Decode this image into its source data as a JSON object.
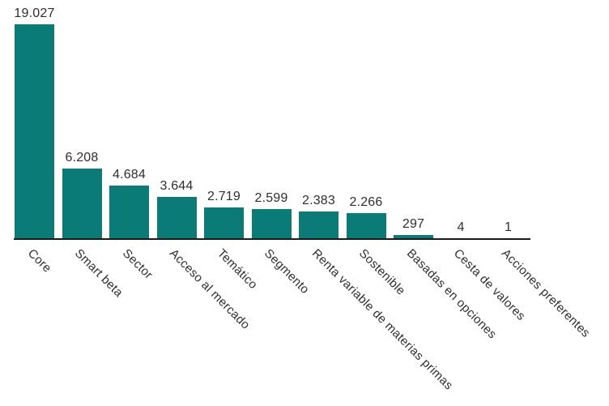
{
  "chart_data": {
    "type": "bar",
    "categories": [
      "Core",
      "Smart beta",
      "Sector",
      "Acceso al mercado",
      "Temático",
      "Segmento",
      "Renta variable de materias primas",
      "Sostenible",
      "Basadas en opciones",
      "Cesta de valores",
      "Acciones preferentes"
    ],
    "values": [
      19027,
      6208,
      4684,
      3644,
      2719,
      2599,
      2383,
      2266,
      297,
      4,
      1
    ],
    "value_labels": [
      "19.027",
      "6.208",
      "4.684",
      "3.644",
      "2.719",
      "2.599",
      "2.383",
      "2.266",
      "297",
      "4",
      "1"
    ],
    "title": "",
    "xlabel": "",
    "ylabel": "",
    "ylim": [
      0,
      19027
    ],
    "grid": false,
    "legend": null,
    "bar_color": "#0a7b76",
    "axis_color": "#1a1a1a",
    "text_color": "#2e2e2e"
  }
}
